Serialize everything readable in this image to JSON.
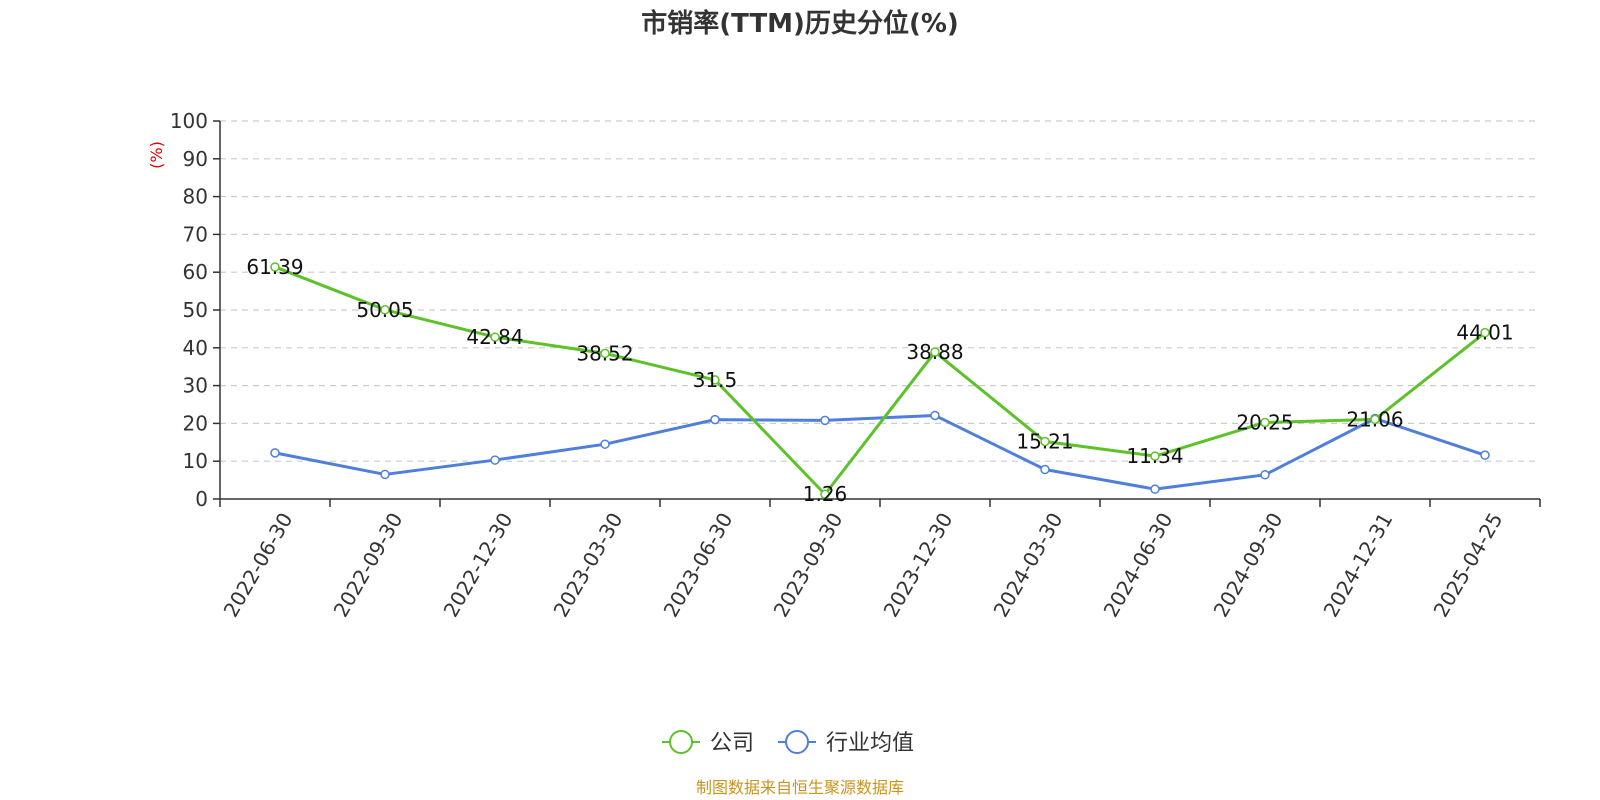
{
  "chart_data": {
    "type": "line",
    "title": "市销率(TTM)历史分位(%)",
    "ylabel": "(%)",
    "xlabel": "",
    "ylim": [
      0,
      100
    ],
    "yticks": [
      0,
      10,
      20,
      30,
      40,
      50,
      60,
      70,
      80,
      90,
      100
    ],
    "grid": "horizontal-dashed",
    "legend_position": "bottom-center",
    "categories": [
      "2022-06-30",
      "2022-09-30",
      "2022-12-30",
      "2023-03-30",
      "2023-06-30",
      "2023-09-30",
      "2023-12-30",
      "2024-03-30",
      "2024-06-30",
      "2024-09-30",
      "2024-12-31",
      "2025-04-25"
    ],
    "series": [
      {
        "name": "公司",
        "color": "#5cc228",
        "values": [
          61.39,
          50.05,
          42.84,
          38.52,
          31.5,
          1.26,
          38.88,
          15.21,
          11.34,
          20.25,
          21.06,
          44.01
        ],
        "labels": [
          "61.39",
          "50.05",
          "42.84",
          "38.52",
          "31.5",
          "1.26",
          "38.88",
          "15.21",
          "11.34",
          "20.25",
          "21.06",
          "44.01"
        ]
      },
      {
        "name": "行业均值",
        "color": "#4e7fdc",
        "values": [
          12.2,
          6.5,
          10.3,
          14.5,
          21.0,
          20.8,
          22.1,
          7.8,
          2.6,
          6.4,
          21.3,
          11.6
        ]
      }
    ],
    "source": "制图数据来自恒生聚源数据库"
  }
}
